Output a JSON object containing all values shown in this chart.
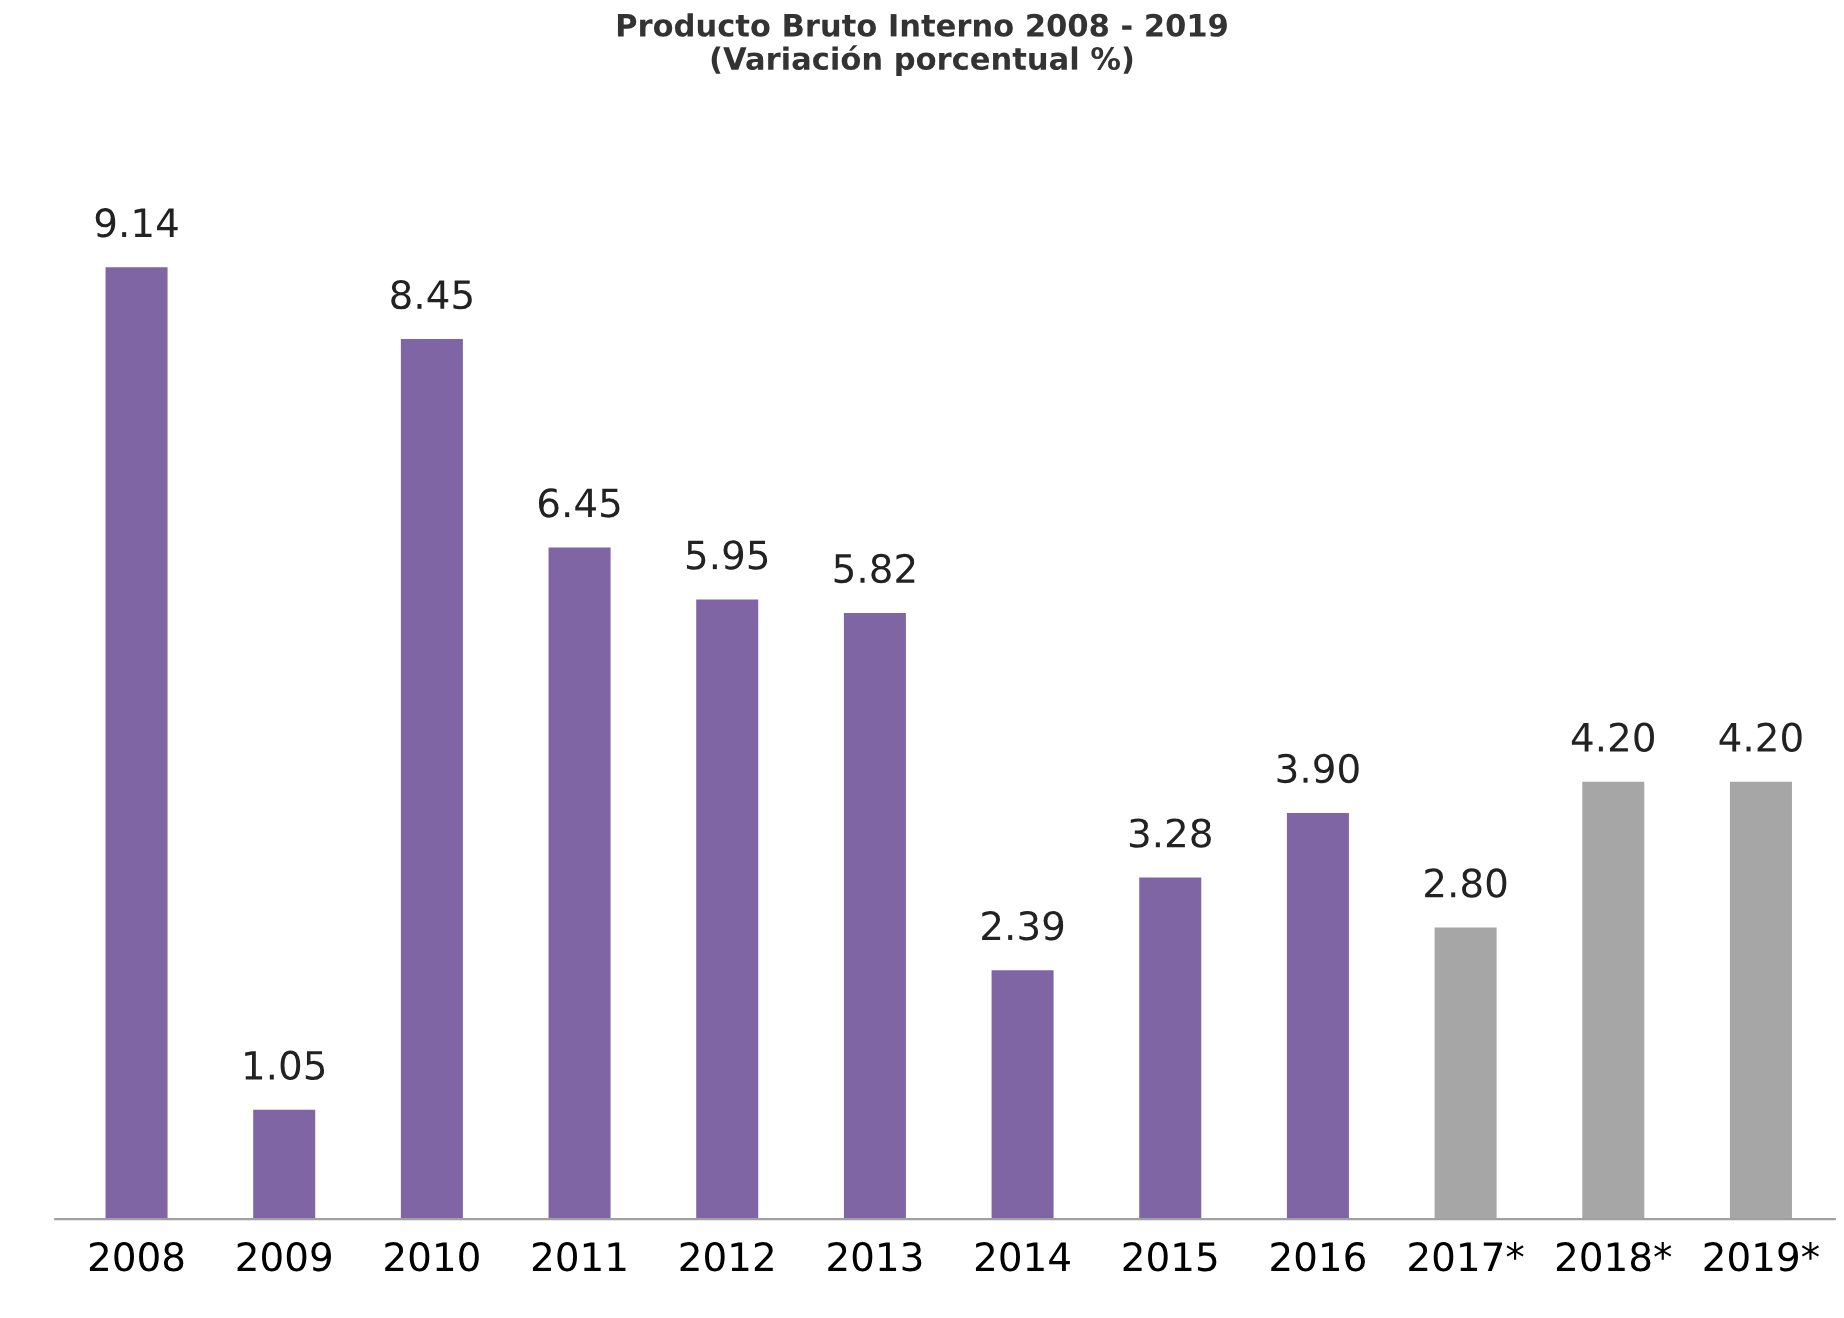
{
  "chart_data": {
    "type": "bar",
    "title": "Producto Bruto Interno 2008 - 2019\n(Variación porcentual %)",
    "categories": [
      "2008",
      "2009",
      "2010",
      "2011",
      "2012",
      "2013",
      "2014",
      "2015",
      "2016",
      "2017*",
      "2018*",
      "2019*"
    ],
    "values": [
      9.14,
      1.05,
      8.45,
      6.45,
      5.95,
      5.82,
      2.39,
      3.28,
      3.9,
      2.8,
      4.2,
      4.2
    ],
    "value_labels": [
      "9.14",
      "1.05",
      "8.45",
      "6.45",
      "5.95",
      "5.82",
      "2.39",
      "3.28",
      "3.90",
      "2.80",
      "4.20",
      "4.20"
    ],
    "colors": [
      "#7f65a3",
      "#7f65a3",
      "#7f65a3",
      "#7f65a3",
      "#7f65a3",
      "#7f65a3",
      "#7f65a3",
      "#7f65a3",
      "#7f65a3",
      "#a6a6a6",
      "#a6a6a6",
      "#a6a6a6"
    ],
    "grid": false,
    "legend": false
  }
}
